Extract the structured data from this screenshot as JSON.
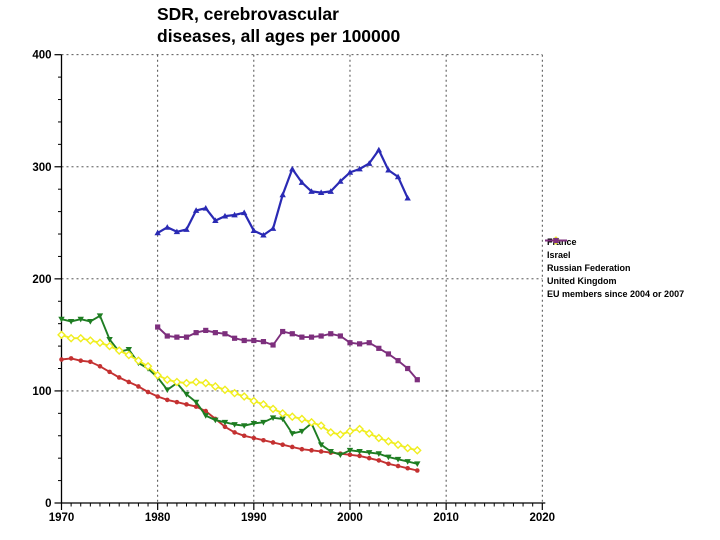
{
  "title": {
    "line1": "SDR, cerebrovascular",
    "line2": "diseases, all ages per 100000"
  },
  "axes": {
    "x": {
      "min": 1970,
      "max": 2020,
      "major_ticks": [
        1970,
        1980,
        1990,
        2000,
        2010,
        2020
      ],
      "minor_step": 1
    },
    "y": {
      "min": 0,
      "max": 400,
      "major_ticks": [
        0,
        100,
        200,
        300,
        400
      ],
      "minor_step": 20
    }
  },
  "chart_data": {
    "type": "line",
    "title": "SDR, cerebrovascular diseases, all ages per 100000",
    "xlabel": "",
    "ylabel": "",
    "xlim": [
      1970,
      2020
    ],
    "ylim": [
      0,
      400
    ],
    "grid": "dashed",
    "legend_position": "right",
    "series": [
      {
        "name": "France",
        "color": "#c43131",
        "marker": "circle",
        "start_year": 1970,
        "values": [
          128,
          129,
          127,
          126,
          122,
          117,
          112,
          108,
          104,
          99,
          95,
          92,
          90,
          88,
          86,
          82,
          75,
          68,
          63,
          60,
          58,
          56,
          54,
          52,
          50,
          48,
          47,
          46,
          45,
          44,
          43,
          42,
          40,
          38,
          35,
          33,
          31,
          29
        ]
      },
      {
        "name": "Israel",
        "color": "#1e7d22",
        "marker": "triangle-down",
        "start_year": 1970,
        "values": [
          164,
          162,
          164,
          162,
          167,
          146,
          135,
          137,
          125,
          120,
          112,
          101,
          107,
          97,
          90,
          78,
          74,
          72,
          70,
          69,
          71,
          72,
          76,
          75,
          62,
          64,
          71,
          52,
          46,
          43,
          47,
          46,
          45,
          44,
          41,
          39,
          37,
          35
        ]
      },
      {
        "name": "Russian Federation",
        "color": "#2a2ab4",
        "marker": "triangle-up",
        "start_year": 1980,
        "values": [
          241,
          246,
          242,
          244,
          261,
          263,
          252,
          256,
          257,
          259,
          243,
          239,
          245,
          275,
          298,
          286,
          278,
          277,
          278,
          287,
          295,
          298,
          303,
          315,
          297,
          291,
          272
        ]
      },
      {
        "name": "United Kingdom",
        "color": "#f0ee20",
        "marker": "diamond-open",
        "start_year": 1970,
        "values": [
          150,
          147,
          147,
          145,
          143,
          140,
          136,
          132,
          127,
          122,
          114,
          110,
          108,
          107,
          108,
          107,
          104,
          101,
          98,
          95,
          91,
          88,
          84,
          80,
          77,
          75,
          72,
          69,
          63,
          61,
          64,
          66,
          62,
          58,
          55,
          52,
          49,
          47
        ]
      },
      {
        "name": "EU members since 2004 or 2007",
        "color": "#7d2f7d",
        "marker": "square",
        "start_year": 1980,
        "values": [
          157,
          149,
          148,
          148,
          152,
          154,
          152,
          151,
          147,
          145,
          145,
          144,
          141,
          153,
          151,
          148,
          148,
          149,
          151,
          149,
          143,
          142,
          143,
          138,
          133,
          127,
          120,
          110
        ]
      }
    ]
  }
}
